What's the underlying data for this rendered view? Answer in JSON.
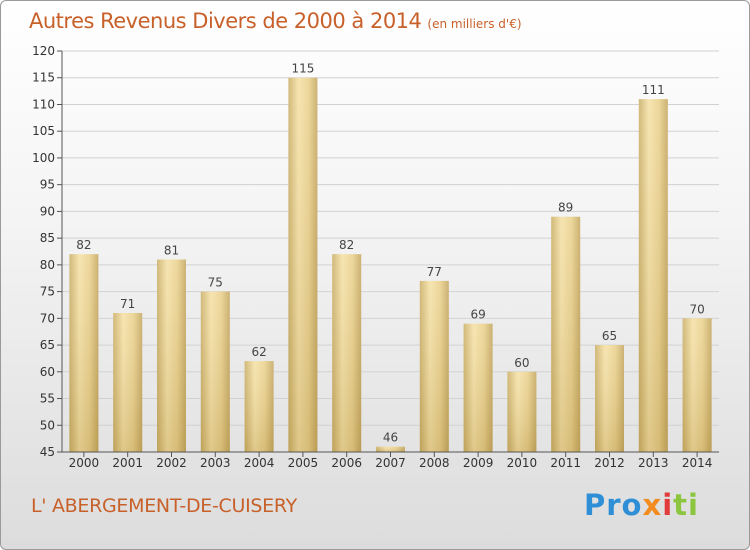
{
  "chart_data": {
    "type": "bar",
    "title": "Autres Revenus Divers de 2000 à 2014",
    "subtitle": "(en milliers d'€)",
    "categories": [
      "2000",
      "2001",
      "2002",
      "2003",
      "2004",
      "2005",
      "2006",
      "2007",
      "2008",
      "2009",
      "2010",
      "2011",
      "2012",
      "2013",
      "2014"
    ],
    "values": [
      82,
      71,
      81,
      75,
      62,
      115,
      82,
      46,
      77,
      69,
      60,
      89,
      65,
      111,
      70
    ],
    "ylim": [
      45,
      120
    ],
    "yticks": [
      45,
      50,
      55,
      60,
      65,
      70,
      75,
      80,
      85,
      90,
      95,
      100,
      105,
      110,
      115,
      120
    ],
    "grid": true,
    "bar_color": "#e8cc85"
  },
  "footer": {
    "commune": "L' ABERGEMENT-DE-CUISERY"
  },
  "logo": {
    "p1": "Pro",
    "p2": "x",
    "p3": "i",
    "p4": "ti"
  }
}
